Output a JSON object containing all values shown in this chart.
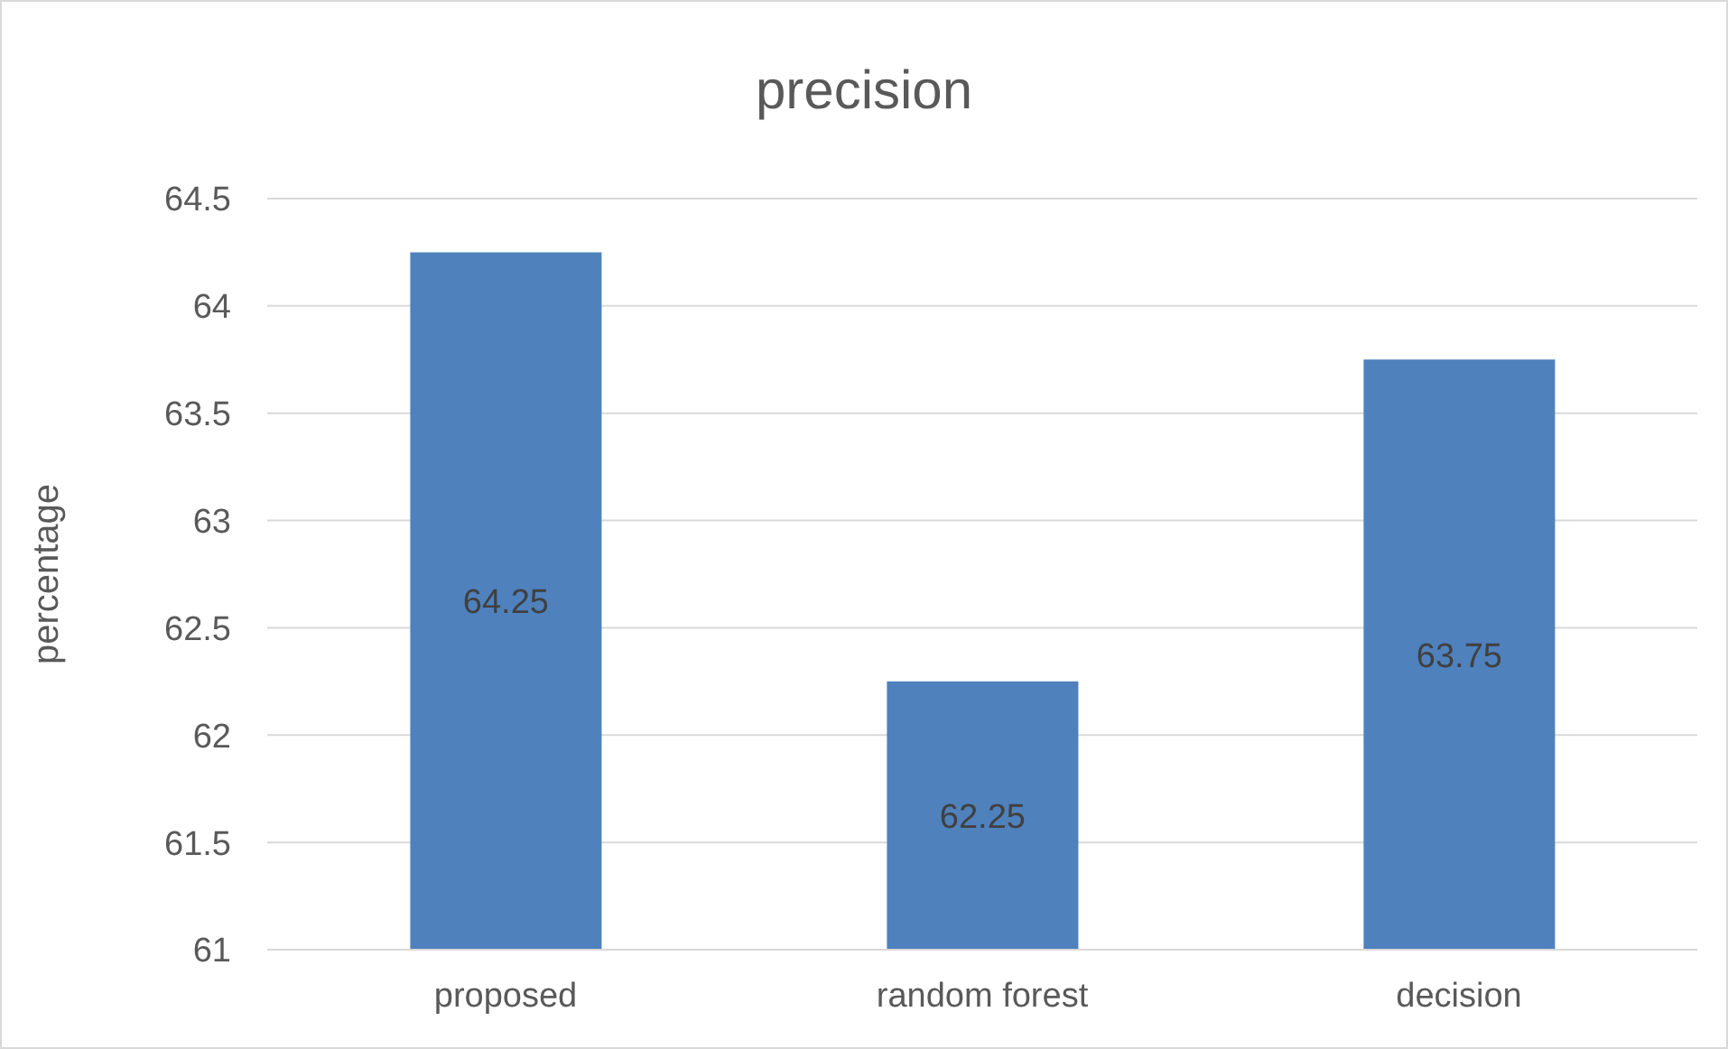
{
  "chart_data": {
    "type": "bar",
    "title": "precision",
    "ylabel": "percentage",
    "categories": [
      "proposed",
      "random forest",
      "decision"
    ],
    "values": [
      64.25,
      62.25,
      63.75
    ],
    "color": "#4f81bd",
    "ylim": [
      61,
      64.5
    ],
    "yticks": [
      61,
      61.5,
      62,
      62.5,
      63,
      63.5,
      64,
      64.5
    ],
    "grid": "y",
    "data_labels": true
  }
}
